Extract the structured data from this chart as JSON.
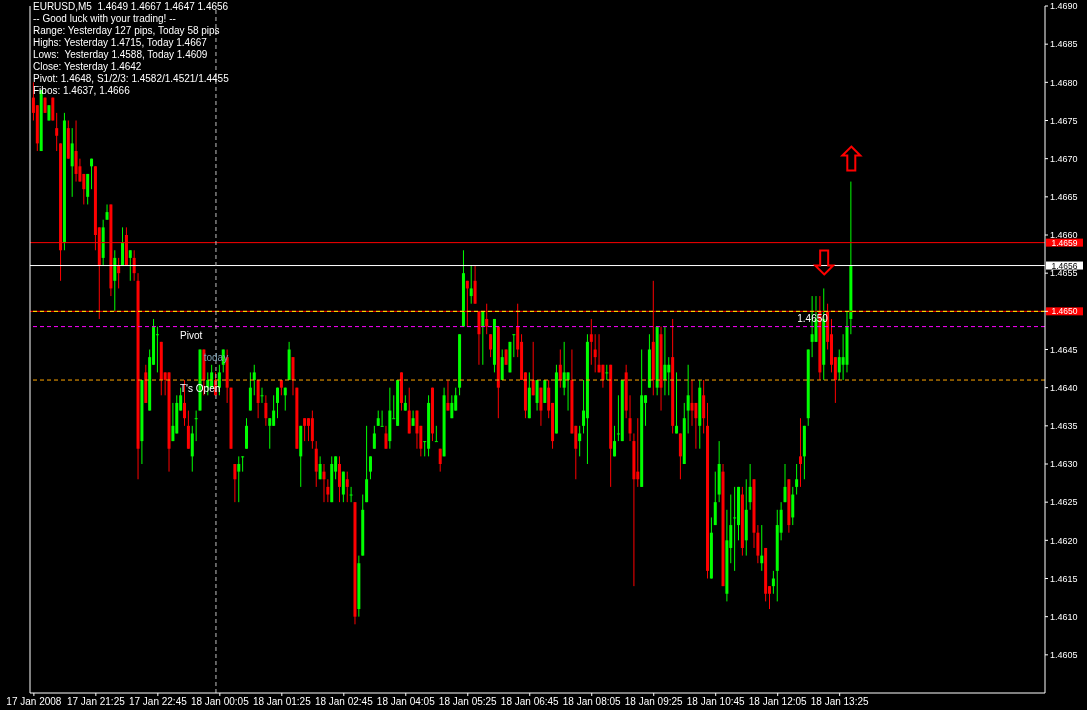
{
  "chart_data": {
    "type": "candlestick",
    "title": "EURUSD,M5  1.4649 1.4667 1.4647 1.4656",
    "annotations": [
      "-- Good luck with your trading! --",
      "Range: Yesterday 127 pips, Today 58 pips",
      "Highs: Yesterday 1.4715, Today 1.4667",
      "Lows:  Yesterday 1.4588, Today 1.4609",
      "Close: Yesterday 1.4642",
      "Pivot: 1.4648, S1/2/3: 1.4582/1.4521/1.4455",
      "Fibos: 1.4637, 1.4666",
      {
        "text": "today",
        "x": "2008-01-18T00:00",
        "y": 1.4644
      },
      {
        "text": "1.4650",
        "x": "2008-01-18T12:50",
        "y": 1.4649
      }
    ],
    "x": [
      "2008-01-17T20:05",
      "2008-01-17T20:10",
      "2008-01-17T20:15",
      "2008-01-17T20:20",
      "2008-01-17T20:25",
      "2008-01-17T20:30",
      "2008-01-17T20:35",
      "2008-01-17T20:40",
      "2008-01-17T20:45",
      "2008-01-17T20:50",
      "2008-01-17T20:55",
      "2008-01-17T21:00",
      "2008-01-17T21:05",
      "2008-01-17T21:10",
      "2008-01-17T21:15",
      "2008-01-17T21:20",
      "2008-01-17T21:25",
      "2008-01-17T21:30",
      "2008-01-17T21:35",
      "2008-01-17T21:40",
      "2008-01-17T21:45",
      "2008-01-17T21:50",
      "2008-01-17T21:55",
      "2008-01-17T22:00",
      "2008-01-17T22:05",
      "2008-01-17T22:10",
      "2008-01-17T22:15",
      "2008-01-17T22:20",
      "2008-01-17T22:25",
      "2008-01-17T22:30",
      "2008-01-17T22:35",
      "2008-01-17T22:40",
      "2008-01-17T22:45",
      "2008-01-17T22:50",
      "2008-01-17T22:55",
      "2008-01-17T23:00",
      "2008-01-17T23:05",
      "2008-01-17T23:10",
      "2008-01-17T23:15",
      "2008-01-17T23:20",
      "2008-01-17T23:25",
      "2008-01-17T23:30",
      "2008-01-17T23:35",
      "2008-01-17T23:40",
      "2008-01-17T23:45",
      "2008-01-17T23:50",
      "2008-01-17T23:55",
      "2008-01-18T00:00",
      "2008-01-18T00:05",
      "2008-01-18T00:10",
      "2008-01-18T00:15",
      "2008-01-18T00:20",
      "2008-01-18T00:25",
      "2008-01-18T00:30",
      "2008-01-18T00:35",
      "2008-01-18T00:40",
      "2008-01-18T00:45",
      "2008-01-18T00:50",
      "2008-01-18T00:55",
      "2008-01-18T01:00",
      "2008-01-18T01:05",
      "2008-01-18T01:10",
      "2008-01-18T01:15",
      "2008-01-18T01:20",
      "2008-01-18T01:25",
      "2008-01-18T01:30",
      "2008-01-18T01:35",
      "2008-01-18T01:40",
      "2008-01-18T01:45",
      "2008-01-18T01:50",
      "2008-01-18T01:55",
      "2008-01-18T02:00",
      "2008-01-18T02:05",
      "2008-01-18T02:10",
      "2008-01-18T02:15",
      "2008-01-18T02:20",
      "2008-01-18T02:25",
      "2008-01-18T02:30",
      "2008-01-18T02:35",
      "2008-01-18T02:40",
      "2008-01-18T02:45",
      "2008-01-18T02:50",
      "2008-01-18T02:55",
      "2008-01-18T03:00",
      "2008-01-18T03:05",
      "2008-01-18T03:10",
      "2008-01-18T03:15",
      "2008-01-18T03:20",
      "2008-01-18T03:25",
      "2008-01-18T03:30",
      "2008-01-18T03:35",
      "2008-01-18T03:40",
      "2008-01-18T03:45",
      "2008-01-18T03:50",
      "2008-01-18T03:55",
      "2008-01-18T04:00",
      "2008-01-18T04:05",
      "2008-01-18T04:10",
      "2008-01-18T04:15",
      "2008-01-18T04:20",
      "2008-01-18T04:25",
      "2008-01-18T04:30",
      "2008-01-18T04:35",
      "2008-01-18T04:40",
      "2008-01-18T04:45",
      "2008-01-18T04:50",
      "2008-01-18T04:55",
      "2008-01-18T05:00",
      "2008-01-18T05:05",
      "2008-01-18T05:10",
      "2008-01-18T05:15",
      "2008-01-18T05:20",
      "2008-01-18T05:25",
      "2008-01-18T05:30",
      "2008-01-18T05:35",
      "2008-01-18T05:40",
      "2008-01-18T05:45",
      "2008-01-18T05:50",
      "2008-01-18T05:55",
      "2008-01-18T06:00",
      "2008-01-18T06:05",
      "2008-01-18T06:10",
      "2008-01-18T06:15",
      "2008-01-18T06:20",
      "2008-01-18T06:25",
      "2008-01-18T06:30",
      "2008-01-18T06:35",
      "2008-01-18T06:40",
      "2008-01-18T06:45",
      "2008-01-18T06:50",
      "2008-01-18T06:55",
      "2008-01-18T07:00",
      "2008-01-18T07:05",
      "2008-01-18T07:10",
      "2008-01-18T07:15",
      "2008-01-18T07:20",
      "2008-01-18T07:25",
      "2008-01-18T07:30",
      "2008-01-18T07:35",
      "2008-01-18T07:40",
      "2008-01-18T07:45",
      "2008-01-18T07:50",
      "2008-01-18T07:55",
      "2008-01-18T08:00",
      "2008-01-18T08:05",
      "2008-01-18T08:10",
      "2008-01-18T08:15",
      "2008-01-18T08:20",
      "2008-01-18T08:25",
      "2008-01-18T08:30",
      "2008-01-18T08:35",
      "2008-01-18T08:40",
      "2008-01-18T08:45",
      "2008-01-18T08:50",
      "2008-01-18T08:55",
      "2008-01-18T09:00",
      "2008-01-18T09:05",
      "2008-01-18T09:10",
      "2008-01-18T09:15",
      "2008-01-18T09:20",
      "2008-01-18T09:25",
      "2008-01-18T09:30",
      "2008-01-18T09:35",
      "2008-01-18T09:40",
      "2008-01-18T09:45",
      "2008-01-18T09:50",
      "2008-01-18T09:55",
      "2008-01-18T10:00",
      "2008-01-18T10:05",
      "2008-01-18T10:10",
      "2008-01-18T10:15",
      "2008-01-18T10:20",
      "2008-01-18T10:25",
      "2008-01-18T10:30",
      "2008-01-18T10:35",
      "2008-01-18T10:40",
      "2008-01-18T10:45",
      "2008-01-18T10:50",
      "2008-01-18T10:55",
      "2008-01-18T11:00",
      "2008-01-18T11:05",
      "2008-01-18T11:10",
      "2008-01-18T11:15",
      "2008-01-18T11:20",
      "2008-01-18T11:25",
      "2008-01-18T11:30",
      "2008-01-18T11:35",
      "2008-01-18T11:40",
      "2008-01-18T11:45",
      "2008-01-18T11:50",
      "2008-01-18T11:55",
      "2008-01-18T12:00",
      "2008-01-18T12:05",
      "2008-01-18T12:10",
      "2008-01-18T12:15",
      "2008-01-18T12:20",
      "2008-01-18T12:25",
      "2008-01-18T12:30",
      "2008-01-18T12:35",
      "2008-01-18T12:40",
      "2008-01-18T12:45",
      "2008-01-18T12:50",
      "2008-01-18T12:55",
      "2008-01-18T13:00",
      "2008-01-18T13:05",
      "2008-01-18T13:10",
      "2008-01-18T13:15",
      "2008-01-18T13:20",
      "2008-01-18T13:25",
      "2008-01-18T13:30",
      "2008-01-18T13:35",
      "2008-01-18T13:40"
    ],
    "ohlc": [
      [
        1.4678,
        1.468,
        1.4675,
        1.4676
      ],
      [
        1.4677,
        1.4677,
        1.4671,
        1.4672
      ],
      [
        1.4671,
        1.4679,
        1.4671,
        1.4679
      ],
      [
        1.4678,
        1.4678,
        1.4676,
        1.4676
      ],
      [
        1.4675,
        1.4677,
        1.4675,
        1.4677
      ],
      [
        1.4678,
        1.4678,
        1.4675,
        1.4675
      ],
      [
        1.4674,
        1.4676,
        1.4671,
        1.4673
      ],
      [
        1.4672,
        1.4672,
        1.4654,
        1.4658
      ],
      [
        1.4659,
        1.4676,
        1.4658,
        1.4675
      ],
      [
        1.4674,
        1.4675,
        1.467,
        1.467
      ],
      [
        1.4669,
        1.4674,
        1.4665,
        1.4672
      ],
      [
        1.4671,
        1.4675,
        1.4667,
        1.4668
      ],
      [
        1.4669,
        1.467,
        1.4667,
        1.4667
      ],
      [
        1.4668,
        1.4668,
        1.4664,
        1.4666
      ],
      [
        1.4665,
        1.4668,
        1.4664,
        1.4668
      ],
      [
        1.4669,
        1.467,
        1.4666,
        1.467
      ],
      [
        1.4669,
        1.4669,
        1.4658,
        1.466
      ],
      [
        1.4661,
        1.4661,
        1.4649,
        1.4656
      ],
      [
        1.4657,
        1.4662,
        1.4656,
        1.4661
      ],
      [
        1.4662,
        1.4664,
        1.4662,
        1.4663
      ],
      [
        1.4664,
        1.4664,
        1.4652,
        1.4653
      ],
      [
        1.4654,
        1.4658,
        1.465,
        1.4657
      ],
      [
        1.4656,
        1.4657,
        1.4653,
        1.4655
      ],
      [
        1.4656,
        1.4661,
        1.4656,
        1.4659
      ],
      [
        1.466,
        1.4661,
        1.4656,
        1.4656
      ],
      [
        1.4657,
        1.4658,
        1.4654,
        1.4658
      ],
      [
        1.4657,
        1.4658,
        1.4654,
        1.4655
      ],
      [
        1.4654,
        1.4655,
        1.4628,
        1.4632
      ],
      [
        1.4633,
        1.4641,
        1.463,
        1.4641
      ],
      [
        1.4642,
        1.4643,
        1.4638,
        1.4638
      ],
      [
        1.4637,
        1.4645,
        1.4637,
        1.4644
      ],
      [
        1.4643,
        1.4649,
        1.4643,
        1.4648
      ],
      [
        1.4647,
        1.4648,
        1.4642,
        1.4647
      ],
      [
        1.4646,
        1.4646,
        1.4639,
        1.4641
      ],
      [
        1.4642,
        1.4642,
        1.4639,
        1.4641
      ],
      [
        1.4642,
        1.4642,
        1.4629,
        1.4632
      ],
      [
        1.4633,
        1.4638,
        1.4633,
        1.4635
      ],
      [
        1.4634,
        1.4639,
        1.4634,
        1.4638
      ],
      [
        1.4637,
        1.464,
        1.4637,
        1.4639
      ],
      [
        1.4638,
        1.4641,
        1.4635,
        1.4636
      ],
      [
        1.4635,
        1.4637,
        1.4632,
        1.4632
      ],
      [
        1.4631,
        1.4635,
        1.4629,
        1.4634
      ],
      [
        1.4636,
        1.4637,
        1.4633,
        1.4636
      ],
      [
        1.4637,
        1.4645,
        1.4637,
        1.4645
      ],
      [
        1.4645,
        1.4645,
        1.4639,
        1.4641
      ],
      [
        1.464,
        1.4642,
        1.4639,
        1.4641
      ],
      [
        1.464,
        1.4643,
        1.464,
        1.4642
      ],
      [
        1.4641,
        1.4642,
        1.4639,
        1.4639
      ],
      [
        1.464,
        1.4643,
        1.4639,
        1.4642
      ],
      [
        1.4643,
        1.4645,
        1.4642,
        1.4645
      ],
      [
        1.4644,
        1.4645,
        1.4638,
        1.464
      ],
      [
        1.464,
        1.464,
        1.4632,
        1.4632
      ],
      [
        1.463,
        1.463,
        1.4625,
        1.4628
      ],
      [
        1.4629,
        1.4631,
        1.4625,
        1.463
      ],
      [
        1.4631,
        1.4631,
        1.4629,
        1.4631
      ],
      [
        1.4632,
        1.4636,
        1.4632,
        1.4635
      ],
      [
        1.4637,
        1.4642,
        1.4637,
        1.464
      ],
      [
        1.4641,
        1.4643,
        1.4639,
        1.4642
      ],
      [
        1.4641,
        1.4641,
        1.4636,
        1.4638
      ],
      [
        1.4639,
        1.464,
        1.4638,
        1.4639
      ],
      [
        1.4638,
        1.4639,
        1.4635,
        1.4636
      ],
      [
        1.4635,
        1.4636,
        1.4632,
        1.4636
      ],
      [
        1.4635,
        1.4639,
        1.4635,
        1.4637
      ],
      [
        1.4638,
        1.464,
        1.4636,
        1.464
      ],
      [
        1.4641,
        1.4641,
        1.4639,
        1.464
      ],
      [
        1.4639,
        1.464,
        1.4637,
        1.464
      ],
      [
        1.4641,
        1.4646,
        1.4641,
        1.4645
      ],
      [
        1.4644,
        1.4644,
        1.4639,
        1.4641
      ],
      [
        1.464,
        1.464,
        1.4632,
        1.4632
      ],
      [
        1.4631,
        1.4635,
        1.4627,
        1.4635
      ],
      [
        1.4636,
        1.4636,
        1.4633,
        1.4635
      ],
      [
        1.4636,
        1.4636,
        1.4633,
        1.4635
      ],
      [
        1.4636,
        1.4637,
        1.4632,
        1.4633
      ],
      [
        1.4632,
        1.4633,
        1.4627,
        1.4629
      ],
      [
        1.4628,
        1.4631,
        1.4628,
        1.463
      ],
      [
        1.4629,
        1.463,
        1.4625,
        1.4628
      ],
      [
        1.4627,
        1.4628,
        1.4625,
        1.4626
      ],
      [
        1.4625,
        1.4631,
        1.4625,
        1.463
      ],
      [
        1.4629,
        1.4631,
        1.4628,
        1.4631
      ],
      [
        1.463,
        1.4631,
        1.4625,
        1.4627
      ],
      [
        1.4626,
        1.4629,
        1.4625,
        1.4629
      ],
      [
        1.4628,
        1.4629,
        1.4625,
        1.4627
      ],
      [
        1.4626,
        1.4627,
        1.4625,
        1.4626
      ],
      [
        1.4625,
        1.4625,
        1.4609,
        1.461
      ],
      [
        1.4611,
        1.4618,
        1.461,
        1.4617
      ],
      [
        1.4618,
        1.4626,
        1.4618,
        1.4624
      ],
      [
        1.4625,
        1.4635,
        1.4625,
        1.4628
      ],
      [
        1.4629,
        1.4631,
        1.4628,
        1.4631
      ],
      [
        1.4632,
        1.4635,
        1.4632,
        1.4634
      ],
      [
        1.4635,
        1.4637,
        1.4635,
        1.4636
      ],
      [
        1.4635,
        1.4637,
        1.4635,
        1.4635
      ],
      [
        1.4634,
        1.4635,
        1.4632,
        1.4632
      ],
      [
        1.4633,
        1.464,
        1.4632,
        1.4637
      ],
      [
        1.4636,
        1.4639,
        1.4636,
        1.4636
      ],
      [
        1.4635,
        1.4641,
        1.4635,
        1.4641
      ],
      [
        1.4642,
        1.4642,
        1.4637,
        1.4638
      ],
      [
        1.4637,
        1.4639,
        1.4637,
        1.4638
      ],
      [
        1.4637,
        1.464,
        1.4634,
        1.4634
      ],
      [
        1.4635,
        1.4637,
        1.4635,
        1.4636
      ],
      [
        1.4637,
        1.4637,
        1.4632,
        1.4634
      ],
      [
        1.4635,
        1.4635,
        1.4631,
        1.4632
      ],
      [
        1.4633,
        1.4633,
        1.4631,
        1.4633
      ],
      [
        1.4632,
        1.4639,
        1.4631,
        1.4638
      ],
      [
        1.464,
        1.464,
        1.4633,
        1.4634
      ],
      [
        1.4633,
        1.4635,
        1.4633,
        1.4633
      ],
      [
        1.4632,
        1.4632,
        1.4629,
        1.463
      ],
      [
        1.4631,
        1.464,
        1.4631,
        1.4639
      ],
      [
        1.4638,
        1.4641,
        1.4637,
        1.4637
      ],
      [
        1.4636,
        1.4639,
        1.4636,
        1.4638
      ],
      [
        1.4637,
        1.464,
        1.4637,
        1.4639
      ],
      [
        1.464,
        1.4647,
        1.4639,
        1.4647
      ],
      [
        1.4648,
        1.4658,
        1.4648,
        1.4655
      ],
      [
        1.4654,
        1.4654,
        1.4648,
        1.4653
      ],
      [
        1.4652,
        1.4656,
        1.4651,
        1.4653
      ],
      [
        1.4654,
        1.4656,
        1.4651,
        1.4651
      ],
      [
        1.465,
        1.465,
        1.4643,
        1.4647
      ],
      [
        1.4648,
        1.465,
        1.4643,
        1.465
      ],
      [
        1.4649,
        1.4651,
        1.4647,
        1.4648
      ],
      [
        1.4647,
        1.4647,
        1.4644,
        1.4645
      ],
      [
        1.4643,
        1.4649,
        1.4642,
        1.4649
      ],
      [
        1.4648,
        1.4648,
        1.4636,
        1.464
      ],
      [
        1.4641,
        1.4645,
        1.4641,
        1.4644
      ],
      [
        1.4645,
        1.4645,
        1.4643,
        1.4643
      ],
      [
        1.4642,
        1.4646,
        1.4642,
        1.4646
      ],
      [
        1.4647,
        1.4647,
        1.4644,
        1.4647
      ],
      [
        1.4648,
        1.4651,
        1.4644,
        1.4645
      ],
      [
        1.4646,
        1.4647,
        1.4641,
        1.4641
      ],
      [
        1.4642,
        1.4642,
        1.4636,
        1.4637
      ],
      [
        1.4636,
        1.4642,
        1.4636,
        1.464
      ],
      [
        1.4641,
        1.4646,
        1.4639,
        1.4639
      ],
      [
        1.4638,
        1.4641,
        1.4637,
        1.4641
      ],
      [
        1.464,
        1.464,
        1.4635,
        1.4637
      ],
      [
        1.4638,
        1.4641,
        1.4638,
        1.4641
      ],
      [
        1.464,
        1.4641,
        1.4636,
        1.4637
      ],
      [
        1.4638,
        1.4638,
        1.4632,
        1.4633
      ],
      [
        1.4634,
        1.4643,
        1.4634,
        1.4642
      ],
      [
        1.4643,
        1.4645,
        1.464,
        1.4641
      ],
      [
        1.464,
        1.4646,
        1.4639,
        1.4642
      ],
      [
        1.4641,
        1.4642,
        1.4637,
        1.4642
      ],
      [
        1.4641,
        1.4645,
        1.4634,
        1.4634
      ],
      [
        1.4635,
        1.4635,
        1.4628,
        1.4632
      ],
      [
        1.4633,
        1.4635,
        1.4631,
        1.4634
      ],
      [
        1.4635,
        1.4641,
        1.4634,
        1.4637
      ],
      [
        1.4636,
        1.4647,
        1.463,
        1.4646
      ],
      [
        1.4647,
        1.4649,
        1.4643,
        1.4646
      ],
      [
        1.4645,
        1.4647,
        1.4642,
        1.4644
      ],
      [
        1.4643,
        1.4647,
        1.4642,
        1.4642
      ],
      [
        1.4643,
        1.4643,
        1.464,
        1.4641
      ],
      [
        1.4642,
        1.4643,
        1.4641,
        1.4642
      ],
      [
        1.4643,
        1.4643,
        1.4627,
        1.4632
      ],
      [
        1.4631,
        1.4635,
        1.4631,
        1.4633
      ],
      [
        1.4634,
        1.4639,
        1.4633,
        1.4634
      ],
      [
        1.4633,
        1.4641,
        1.4633,
        1.4641
      ],
      [
        1.4642,
        1.4643,
        1.4636,
        1.4637
      ],
      [
        1.4636,
        1.4639,
        1.4633,
        1.4634
      ],
      [
        1.4633,
        1.4634,
        1.4614,
        1.4628
      ],
      [
        1.4629,
        1.4636,
        1.4627,
        1.4628
      ],
      [
        1.4627,
        1.4645,
        1.4627,
        1.4639
      ],
      [
        1.4638,
        1.4639,
        1.4635,
        1.4639
      ],
      [
        1.464,
        1.4647,
        1.464,
        1.4645
      ],
      [
        1.4646,
        1.4654,
        1.4639,
        1.4641
      ],
      [
        1.464,
        1.4648,
        1.4639,
        1.4648
      ],
      [
        1.4647,
        1.4648,
        1.4637,
        1.464
      ],
      [
        1.4641,
        1.4648,
        1.4639,
        1.4643
      ],
      [
        1.4642,
        1.4644,
        1.4639,
        1.4643
      ],
      [
        1.4644,
        1.4649,
        1.4634,
        1.4635
      ],
      [
        1.4634,
        1.4642,
        1.4634,
        1.4635
      ],
      [
        1.4634,
        1.4634,
        1.4628,
        1.4631
      ],
      [
        1.463,
        1.4638,
        1.463,
        1.4636
      ],
      [
        1.4637,
        1.4643,
        1.4634,
        1.4639
      ],
      [
        1.4638,
        1.4641,
        1.4635,
        1.4637
      ],
      [
        1.4638,
        1.4638,
        1.4632,
        1.4636
      ],
      [
        1.4635,
        1.4641,
        1.4632,
        1.464
      ],
      [
        1.4639,
        1.4641,
        1.4634,
        1.4636
      ],
      [
        1.4635,
        1.4638,
        1.4615,
        1.4616
      ],
      [
        1.4615,
        1.4623,
        1.4615,
        1.4621
      ],
      [
        1.4622,
        1.4629,
        1.4622,
        1.4625
      ],
      [
        1.4626,
        1.4633,
        1.4625,
        1.463
      ],
      [
        1.4629,
        1.463,
        1.4614,
        1.4614
      ],
      [
        1.4613,
        1.4624,
        1.4612,
        1.462
      ],
      [
        1.4619,
        1.4626,
        1.4617,
        1.4622
      ],
      [
        1.4623,
        1.4627,
        1.4616,
        1.4623
      ],
      [
        1.4622,
        1.4627,
        1.462,
        1.4627
      ],
      [
        1.4626,
        1.4627,
        1.4618,
        1.4619
      ],
      [
        1.462,
        1.4628,
        1.4618,
        1.4624
      ],
      [
        1.4625,
        1.463,
        1.4624,
        1.4627
      ],
      [
        1.4628,
        1.4628,
        1.4619,
        1.4621
      ],
      [
        1.4621,
        1.4622,
        1.4617,
        1.4618
      ],
      [
        1.4617,
        1.4622,
        1.4616,
        1.4618
      ],
      [
        1.4619,
        1.4619,
        1.4612,
        1.4613
      ],
      [
        1.4614,
        1.4614,
        1.4611,
        1.4613
      ],
      [
        1.4614,
        1.4616,
        1.4613,
        1.4615
      ],
      [
        1.4616,
        1.4624,
        1.4612,
        1.4622
      ],
      [
        1.4621,
        1.4625,
        1.462,
        1.4624
      ],
      [
        1.4625,
        1.463,
        1.4625,
        1.4627
      ],
      [
        1.4628,
        1.4628,
        1.4621,
        1.4622
      ],
      [
        1.4623,
        1.4627,
        1.4622,
        1.4626
      ],
      [
        1.4627,
        1.463,
        1.4626,
        1.4628
      ],
      [
        1.4631,
        1.4636,
        1.4627,
        1.463
      ],
      [
        1.4631,
        1.4635,
        1.4628,
        1.4635
      ],
      [
        1.4636,
        1.4645,
        1.4635,
        1.4645
      ],
      [
        1.4646,
        1.4652,
        1.4644,
        1.4647
      ],
      [
        1.4646,
        1.4652,
        1.4646,
        1.4649
      ],
      [
        1.465,
        1.4652,
        1.4641,
        1.4642
      ],
      [
        1.4643,
        1.4653,
        1.4641,
        1.4649
      ],
      [
        1.465,
        1.4651,
        1.4645,
        1.4646
      ],
      [
        1.4647,
        1.4649,
        1.4642,
        1.4643
      ],
      [
        1.4644,
        1.4644,
        1.4638,
        1.4641
      ],
      [
        1.4642,
        1.4645,
        1.4641,
        1.4644
      ],
      [
        1.4643,
        1.4647,
        1.4641,
        1.4644
      ],
      [
        1.4643,
        1.465,
        1.4642,
        1.4648
      ],
      [
        1.4649,
        1.4667,
        1.4647,
        1.4656
      ]
    ],
    "colors": [
      "#ff0000",
      "#ff0000",
      "#00ff00",
      "#ff0000",
      "#00ff00",
      "#ff0000",
      "#ff0000",
      "#ff0000",
      "#00ff00",
      "#ff0000",
      "#00ff00",
      "#ff0000",
      "#ff0000",
      "#ff0000",
      "#00ff00",
      "#00ff00",
      "#ff0000",
      "#ff0000",
      "#00ff00",
      "#00ff00",
      "#ff0000",
      "#00ff00",
      "#ff0000",
      "#00ff00",
      "#ff0000",
      "#00ff00",
      "#ff0000",
      "#ff0000",
      "#00ff00",
      "#ff0000",
      "#00ff00",
      "#00ff00",
      "#00ff00",
      "#ff0000",
      "#ff0000",
      "#ff0000",
      "#00ff00",
      "#00ff00",
      "#00ff00",
      "#ff0000",
      "#ff0000",
      "#00ff00",
      "#00ff00",
      "#00ff00",
      "#ff0000",
      "#00ff00",
      "#00ff00",
      "#ff0000",
      "#00ff00",
      "#00ff00",
      "#ff0000",
      "#ff0000",
      "#ff0000",
      "#00ff00",
      "#00ff00",
      "#00ff00",
      "#00ff00",
      "#00ff00",
      "#ff0000",
      "#00ff00",
      "#ff0000",
      "#00ff00",
      "#00ff00",
      "#00ff00",
      "#ff0000",
      "#00ff00",
      "#00ff00",
      "#ff0000",
      "#ff0000",
      "#00ff00",
      "#ff0000",
      "#ff0000",
      "#ff0000",
      "#ff0000",
      "#00ff00",
      "#ff0000",
      "#ff0000",
      "#00ff00",
      "#00ff00",
      "#ff0000",
      "#00ff00",
      "#ff0000",
      "#00ff00",
      "#ff0000",
      "#00ff00",
      "#00ff00",
      "#00ff00",
      "#00ff00",
      "#00ff00",
      "#00ff00",
      "#00ff00",
      "#ff0000",
      "#00ff00",
      "#00ff00",
      "#00ff00",
      "#ff0000",
      "#00ff00",
      "#ff0000",
      "#00ff00",
      "#ff0000",
      "#ff0000",
      "#00ff00",
      "#00ff00",
      "#ff0000",
      "#00ff00",
      "#ff0000",
      "#00ff00",
      "#ff0000",
      "#00ff00",
      "#00ff00",
      "#00ff00",
      "#00ff00",
      "#ff0000",
      "#00ff00",
      "#ff0000",
      "#ff0000",
      "#00ff00",
      "#ff0000",
      "#ff0000",
      "#00ff00",
      "#ff0000",
      "#00ff00",
      "#ff0000",
      "#00ff00",
      "#00ff00",
      "#ff0000",
      "#ff0000",
      "#ff0000",
      "#00ff00",
      "#ff0000",
      "#00ff00",
      "#ff0000",
      "#00ff00",
      "#ff0000",
      "#ff0000",
      "#00ff00",
      "#ff0000",
      "#00ff00",
      "#00ff00",
      "#ff0000",
      "#ff0000",
      "#00ff00",
      "#00ff00",
      "#00ff00",
      "#ff0000",
      "#ff0000",
      "#ff0000",
      "#ff0000",
      "#00ff00",
      "#ff0000",
      "#00ff00",
      "#00ff00",
      "#00ff00",
      "#ff0000",
      "#ff0000",
      "#ff0000",
      "#ff0000",
      "#00ff00",
      "#00ff00",
      "#00ff00",
      "#ff0000",
      "#00ff00",
      "#ff0000",
      "#00ff00",
      "#00ff00",
      "#ff0000",
      "#00ff00",
      "#ff0000",
      "#00ff00",
      "#00ff00",
      "#ff0000",
      "#ff0000",
      "#00ff00",
      "#ff0000",
      "#ff0000",
      "#00ff00",
      "#00ff00",
      "#00ff00",
      "#ff0000",
      "#00ff00",
      "#00ff00",
      "#00ff00",
      "#00ff00",
      "#ff0000",
      "#00ff00",
      "#00ff00",
      "#ff0000",
      "#ff0000",
      "#00ff00",
      "#ff0000",
      "#ff0000",
      "#00ff00",
      "#00ff00",
      "#00ff00",
      "#00ff00",
      "#ff0000",
      "#00ff00",
      "#00ff00",
      "#ff0000",
      "#00ff00",
      "#00ff00",
      "#00ff00",
      "#00ff00",
      "#ff0000",
      "#00ff00",
      "#ff0000",
      "#ff0000",
      "#ff0000",
      "#00ff00",
      "#00ff00",
      "#00ff00",
      "#00ff00"
    ],
    "xlim": [
      "2008-01-17T20:00",
      "2008-01-18T17:50"
    ],
    "xticks": [
      {
        "value": "2008-01-17T20:05",
        "label": "17 Jan 2008"
      },
      {
        "value": "2008-01-17T21:25",
        "label": "17 Jan 21:25"
      },
      {
        "value": "2008-01-17T22:45",
        "label": "17 Jan 22:45"
      },
      {
        "value": "2008-01-18T00:05",
        "label": "18 Jan 00:05"
      },
      {
        "value": "2008-01-18T01:25",
        "label": "18 Jan 01:25"
      },
      {
        "value": "2008-01-18T02:45",
        "label": "18 Jan 02:45"
      },
      {
        "value": "2008-01-18T04:05",
        "label": "18 Jan 04:05"
      },
      {
        "value": "2008-01-18T05:25",
        "label": "18 Jan 05:25"
      },
      {
        "value": "2008-01-18T06:45",
        "label": "18 Jan 06:45"
      },
      {
        "value": "2008-01-18T08:05",
        "label": "18 Jan 08:05"
      },
      {
        "value": "2008-01-18T09:25",
        "label": "18 Jan 09:25"
      },
      {
        "value": "2008-01-18T10:45",
        "label": "18 Jan 10:45"
      },
      {
        "value": "2008-01-18T12:05",
        "label": "18 Jan 12:05"
      },
      {
        "value": "2008-01-18T13:25",
        "label": "18 Jan 13:25"
      }
    ],
    "ylim": [
      1.46,
      1.469
    ],
    "yticks": [
      1.4605,
      {
        "value": 1.461,
        "label": "1.4610"
      },
      1.4615,
      {
        "value": 1.462,
        "label": "1.4620"
      },
      1.4625,
      {
        "value": 1.463,
        "label": "1.4630"
      },
      1.4635,
      {
        "value": 1.464,
        "label": "1.4640"
      },
      1.4645,
      {
        "value": 1.465,
        "label": null
      },
      1.4655,
      {
        "value": 1.466,
        "label": "1.4660"
      },
      1.4665,
      {
        "value": 1.467,
        "label": "1.4670"
      },
      1.4675,
      {
        "value": 1.468,
        "label": "1.4680"
      },
      1.4685,
      {
        "value": 1.469,
        "label": "1.4690"
      }
    ],
    "ref_lines": [
      {
        "axis": "y",
        "value": 1.4659,
        "label": "1.4659",
        "color": "#ff0000",
        "line_style": "solid"
      },
      {
        "axis": "y",
        "value": 1.4656,
        "label": "1.4656",
        "color": "#ffffff",
        "line_style": "solid"
      },
      {
        "axis": "y",
        "value": 1.465,
        "label": "1.4650",
        "color": "#ff0000",
        "line_style": "solid"
      },
      {
        "axis": "y",
        "value": 1.4648,
        "label": "Pivot",
        "color": "#ff00ff",
        "line_style": "dashed"
      },
      {
        "axis": "y",
        "value": 1.4641,
        "label": "T's Open",
        "color": "#ffa500",
        "line_style": "dashed"
      },
      {
        "axis": "y",
        "value": 1.465,
        "color": "#ffff00",
        "line_style": "dashed"
      },
      {
        "axis": "x",
        "value": "2008-01-18T00:00",
        "color": "#c0c0c0",
        "line_style": "dashed"
      }
    ]
  }
}
